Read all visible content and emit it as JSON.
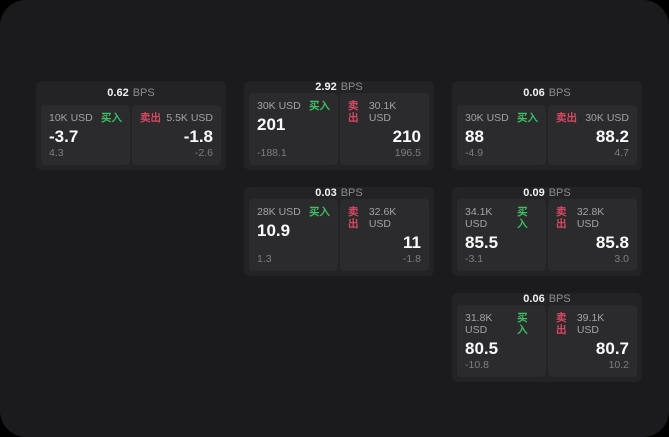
{
  "labels": {
    "bps_unit": "BPS",
    "buy": "买入",
    "sell": "卖出"
  },
  "colors": {
    "surface_bg": "#1b1b1d",
    "page_bg": "#000000",
    "card_bg": "#232326",
    "panel_bg": "#2b2b2e",
    "buy_green": "#3dbd63",
    "sell_red": "#d44a62"
  },
  "cards": [
    {
      "bps": "0.62",
      "col": 1,
      "row": 1,
      "buy": {
        "amount": "10K USD",
        "price": "-3.7",
        "delta": "4.3"
      },
      "sell": {
        "amount": "5.5K USD",
        "price": "-1.8",
        "delta": "-2.6"
      }
    },
    {
      "bps": "2.92",
      "col": 2,
      "row": 1,
      "buy": {
        "amount": "30K USD",
        "price": "201",
        "delta": "-188.1"
      },
      "sell": {
        "amount": "30.1K USD",
        "price": "210",
        "delta": "196.5"
      }
    },
    {
      "bps": "0.06",
      "col": 3,
      "row": 1,
      "buy": {
        "amount": "30K USD",
        "price": "88",
        "delta": "-4.9"
      },
      "sell": {
        "amount": "30K USD",
        "price": "88.2",
        "delta": "4.7"
      }
    },
    {
      "bps": "0.03",
      "col": 2,
      "row": 2,
      "buy": {
        "amount": "28K USD",
        "price": "10.9",
        "delta": "1.3"
      },
      "sell": {
        "amount": "32.6K USD",
        "price": "11",
        "delta": "-1.8"
      }
    },
    {
      "bps": "0.09",
      "col": 3,
      "row": 2,
      "buy": {
        "amount": "34.1K USD",
        "price": "85.5",
        "delta": "-3.1"
      },
      "sell": {
        "amount": "32.8K USD",
        "price": "85.8",
        "delta": "3.0"
      }
    },
    {
      "bps": "0.06",
      "col": 3,
      "row": 3,
      "buy": {
        "amount": "31.8K USD",
        "price": "80.5",
        "delta": "-10.8"
      },
      "sell": {
        "amount": "39.1K USD",
        "price": "80.7",
        "delta": "10.2"
      }
    }
  ]
}
